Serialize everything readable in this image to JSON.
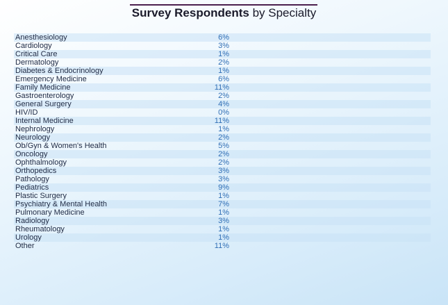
{
  "chart_data": {
    "type": "table",
    "title": "Survey Respondents",
    "subtitle": "by Specialty",
    "unit": "%",
    "categories": [
      "Anesthesiology",
      "Cardiology",
      "Critical Care",
      "Dermatology",
      "Diabetes & Endocrinology",
      "Emergency Medicine",
      "Family Medicine",
      "Gastroenterology",
      "General Surgery",
      "HIV/ID",
      "Internal Medicine",
      "Nephrology",
      "Neurology",
      "Ob/Gyn & Women's Health",
      "Oncology",
      "Ophthalmology",
      "Orthopedics",
      "Pathology",
      "Pediatrics",
      "Plastic Surgery",
      "Psychiatry & Mental Health",
      "Pulmonary Medicine",
      "Radiology",
      "Rheumatology",
      "Urology",
      "Other"
    ],
    "values": [
      6,
      3,
      1,
      2,
      1,
      6,
      11,
      2,
      4,
      0,
      11,
      1,
      2,
      5,
      2,
      2,
      3,
      3,
      9,
      1,
      7,
      1,
      3,
      1,
      1,
      11
    ],
    "labels": [
      "6%",
      "3%",
      "1%",
      "2%",
      "1%",
      "6%",
      "11%",
      "2%",
      "4%",
      "0%",
      "11%",
      "1%",
      "2%",
      "5%",
      "2%",
      "2%",
      "3%",
      "3%",
      "9%",
      "1%",
      "7%",
      "1%",
      "3%",
      "1%",
      "1%",
      "11%"
    ],
    "colors": {
      "title_rule": "#4b1f4e",
      "value_text": "#2f6eb5",
      "label_text": "#1f2a44",
      "row_band": "#c8e1f5"
    }
  }
}
